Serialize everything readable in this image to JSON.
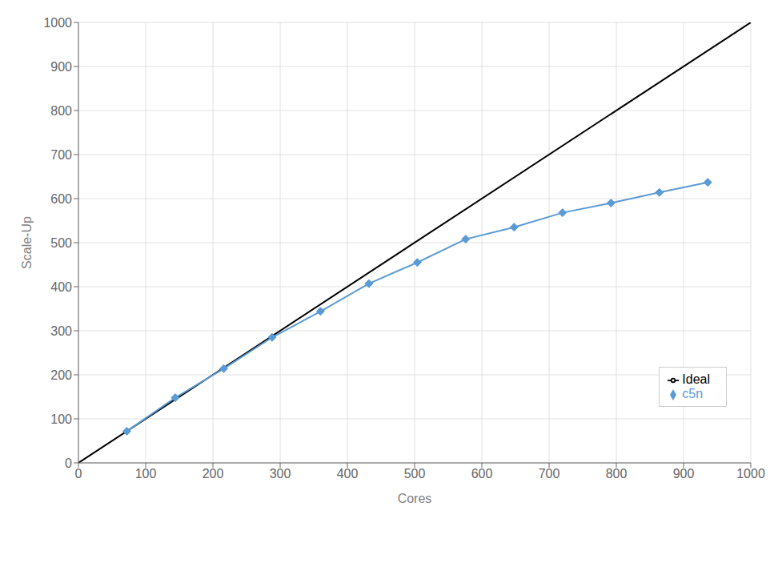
{
  "chart_data": {
    "type": "line",
    "xlabel": "Cores",
    "ylabel": "Scale-Up",
    "xlim": [
      0,
      1000
    ],
    "ylim": [
      0,
      1000
    ],
    "xticks": [
      0,
      100,
      200,
      300,
      400,
      500,
      600,
      700,
      800,
      900,
      1000
    ],
    "yticks": [
      0,
      100,
      200,
      300,
      400,
      500,
      600,
      700,
      800,
      900,
      1000
    ],
    "grid": true,
    "legend": "lower right",
    "series": [
      {
        "name": "Ideal",
        "color": "#000000",
        "x": [
          0,
          1000
        ],
        "values": [
          0,
          1000
        ]
      },
      {
        "name": "c5n",
        "color": "#5b9bd5",
        "marker": "diamond",
        "x": [
          72,
          144,
          216,
          288,
          360,
          432,
          504,
          576,
          648,
          720,
          792,
          864,
          936
        ],
        "values": [
          72,
          148,
          214,
          285,
          344,
          407,
          455,
          508,
          535,
          568,
          590,
          614,
          637
        ]
      }
    ]
  }
}
